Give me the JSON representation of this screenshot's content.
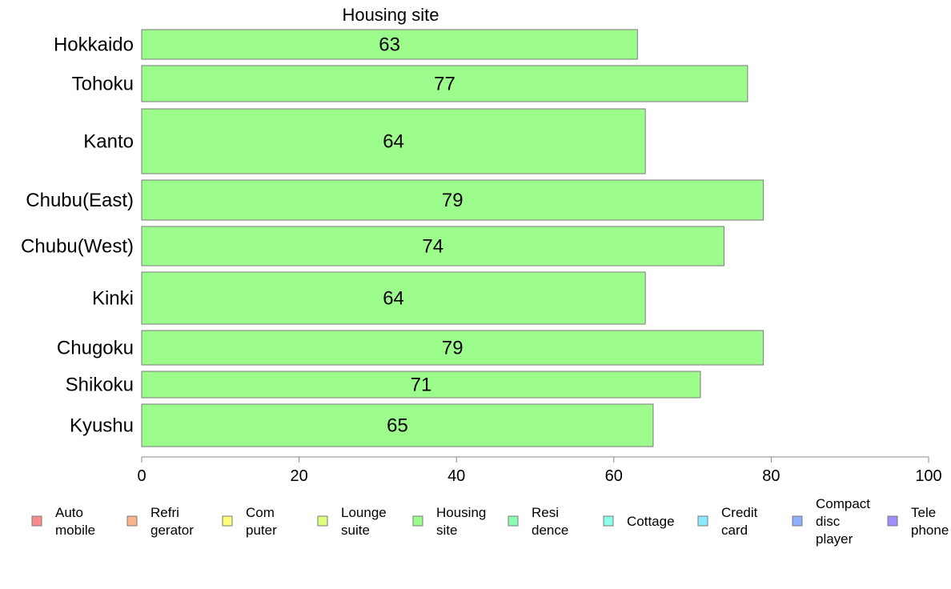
{
  "chart_data": {
    "type": "bar",
    "orientation": "horizontal",
    "title": "Housing site",
    "categories": [
      "Hokkaido",
      "Tohoku",
      "Kanto",
      "Chubu(East)",
      "Chubu(West)",
      "Kinki",
      "Chugoku",
      "Shikoku",
      "Kyushu"
    ],
    "series": [
      {
        "name": "Housing site",
        "values": [
          63,
          77,
          64,
          79,
          74,
          64,
          79,
          71,
          65
        ],
        "color": "#9dfd8c"
      }
    ],
    "xlim": [
      0,
      100
    ],
    "xticks": [
      "0",
      "20",
      "40",
      "60",
      "80",
      "100"
    ],
    "xlabel": "",
    "ylabel": "",
    "grid": false,
    "legend_position": "bottom",
    "legend": [
      {
        "lines": [
          "Auto",
          "mobile"
        ],
        "color": "#f88b8b"
      },
      {
        "lines": [
          "Refri",
          "gerator"
        ],
        "color": "#f8b48b"
      },
      {
        "lines": [
          "Com",
          "puter"
        ],
        "color": "#fdfd7c"
      },
      {
        "lines": [
          "Lounge",
          "suite"
        ],
        "color": "#ddfd7c"
      },
      {
        "lines": [
          "Housing",
          "site"
        ],
        "color": "#9dfd8c"
      },
      {
        "lines": [
          "Resi",
          "dence"
        ],
        "color": "#8cfdb0"
      },
      {
        "lines": [
          "Cottage"
        ],
        "color": "#8cfde8"
      },
      {
        "lines": [
          "Credit",
          "card"
        ],
        "color": "#8ce8fd"
      },
      {
        "lines": [
          "Compact",
          "disc",
          "player"
        ],
        "color": "#8cb0fd"
      },
      {
        "lines": [
          "Tele",
          "phone"
        ],
        "color": "#a08cfd"
      }
    ]
  }
}
